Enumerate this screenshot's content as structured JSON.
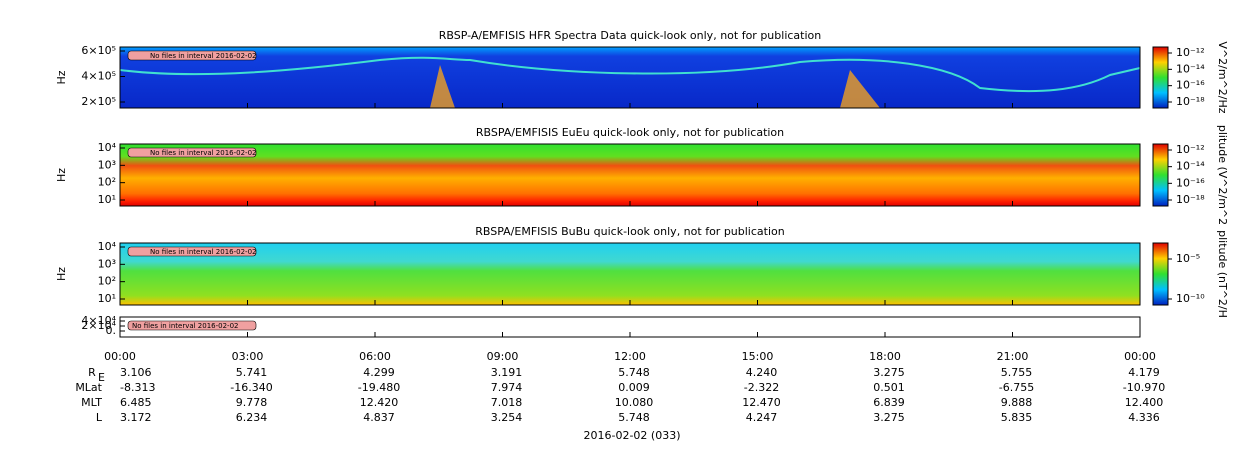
{
  "panels": [
    {
      "title": "RBSP-A/EMFISIS  HFR Spectra Data quick-look only, not for publication",
      "ylabel": "Hz",
      "yticks": [
        "6×10⁵",
        "4×10⁵",
        "2×10⁵"
      ],
      "colorbar_label": "V^2/m^2/Hz",
      "colorbar_ticks": [
        "10⁻¹²",
        "10⁻¹⁴",
        "10⁻¹⁶",
        "10⁻¹⁸"
      ],
      "note": "No files in interval 2016-02-02"
    },
    {
      "title": "RBSPA/EMFISIS  EuEu quick-look only, not for publication",
      "ylabel": "Hz",
      "yticks": [
        "10⁴",
        "10³",
        "10²",
        "10¹"
      ],
      "colorbar_label": "plitude (V^2/m^2",
      "colorbar_ticks": [
        "10⁻¹²",
        "10⁻¹⁴",
        "10⁻¹⁶",
        "10⁻¹⁸"
      ],
      "note": "No files in interval 2016-02-02"
    },
    {
      "title": "RBSPA/EMFISIS  BuBu quick-look only, not for publication",
      "ylabel": "Hz",
      "yticks": [
        "10⁴",
        "10³",
        "10²",
        "10¹"
      ],
      "colorbar_label": "plitude (nT^2/H",
      "colorbar_ticks": [
        "10⁻⁵",
        "10⁻¹⁰"
      ],
      "note": "No files in interval 2016-02-02"
    },
    {
      "yticks": [
        "4×10⁴",
        "2×10⁴",
        "0."
      ],
      "note": "No files in interval 2016-02-02"
    }
  ],
  "time_ticks": [
    "00:00",
    "03:00",
    "06:00",
    "09:00",
    "12:00",
    "15:00",
    "18:00",
    "21:00",
    "00:00"
  ],
  "ephemeris": [
    {
      "label": "RE",
      "values": [
        "3.106",
        "5.741",
        "4.299",
        "3.191",
        "5.748",
        "4.240",
        "3.275",
        "5.755",
        "4.179"
      ]
    },
    {
      "label": "MLat",
      "values": [
        "-8.313",
        "-16.340",
        "-19.480",
        "7.974",
        "0.009",
        "-2.322",
        "0.501",
        "-6.755",
        "-10.970"
      ]
    },
    {
      "label": "MLT",
      "values": [
        "6.485",
        "9.778",
        "12.420",
        "7.018",
        "10.080",
        "12.470",
        "6.839",
        "9.888",
        "12.400"
      ]
    },
    {
      "label": "L",
      "values": [
        "3.172",
        "6.234",
        "4.837",
        "3.254",
        "5.748",
        "4.247",
        "3.275",
        "5.835",
        "4.336"
      ]
    }
  ],
  "footer": "2016-02-02 (033)"
}
